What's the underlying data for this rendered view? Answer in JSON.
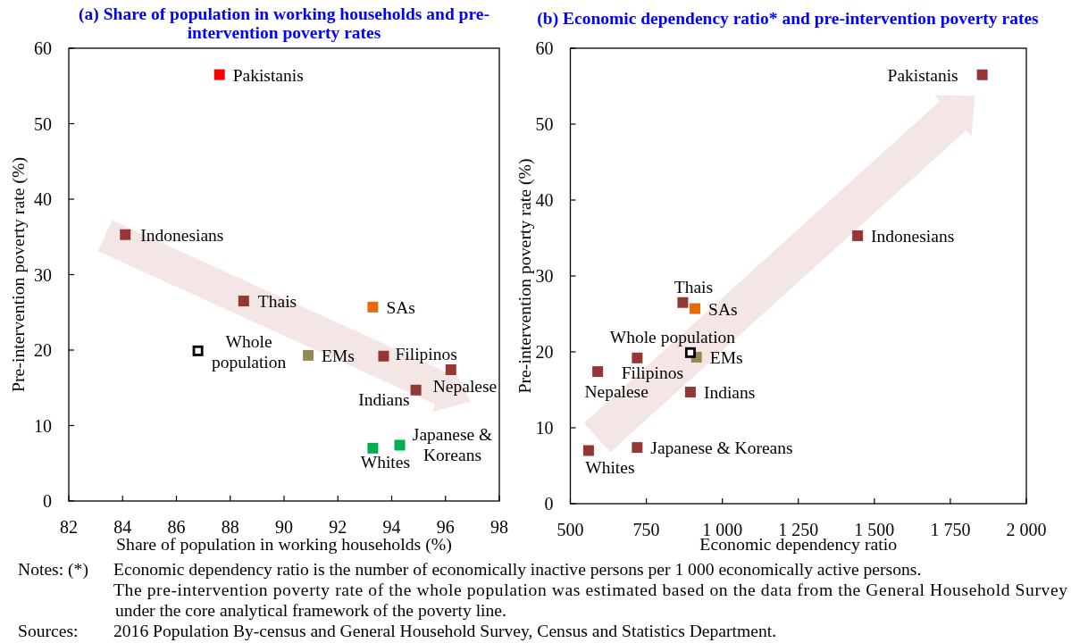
{
  "chart_data": [
    {
      "type": "scatter",
      "title": "(a) Share of population in working households and pre-intervention poverty rates",
      "xlabel": "Share of population in working households (%)",
      "ylabel": "Pre-intervention poverty rate (%)",
      "marker": "square",
      "xlim": [
        82,
        98
      ],
      "xticks": [
        82,
        84,
        86,
        88,
        90,
        92,
        94,
        96,
        98
      ],
      "ylim": [
        0,
        60
      ],
      "yticks": [
        0,
        10,
        20,
        30,
        40,
        50,
        60
      ],
      "series": [
        {
          "name": "Pakistanis",
          "color": "#ff0000",
          "x": [
            87.6
          ],
          "values": [
            56.5
          ]
        },
        {
          "name": "Indonesians",
          "color": "#953735",
          "x": [
            84.1
          ],
          "values": [
            35.3
          ]
        },
        {
          "name": "Thais",
          "color": "#953735",
          "x": [
            88.5
          ],
          "values": [
            26.5
          ]
        },
        {
          "name": "SAs",
          "color": "#e46c0a",
          "x": [
            93.3
          ],
          "values": [
            25.7
          ]
        },
        {
          "name": "EMs",
          "color": "#948a54",
          "x": [
            90.9
          ],
          "values": [
            19.3
          ]
        },
        {
          "name": "Filipinos",
          "color": "#953735",
          "x": [
            93.7
          ],
          "values": [
            19.2
          ]
        },
        {
          "name": "Nepalese",
          "color": "#953735",
          "x": [
            96.2
          ],
          "values": [
            17.4
          ]
        },
        {
          "name": "Indians",
          "color": "#953735",
          "x": [
            94.9
          ],
          "values": [
            14.7
          ]
        },
        {
          "name": "Whites",
          "color": "#00b050",
          "x": [
            93.3
          ],
          "values": [
            7.0
          ]
        },
        {
          "name": "Japanese & Koreans",
          "color": "#00b050",
          "x": [
            94.3
          ],
          "values": [
            7.4
          ]
        },
        {
          "name": "Whole population",
          "color": "#000000",
          "marker": "square-open",
          "x": [
            86.8
          ],
          "values": [
            19.9
          ]
        }
      ]
    },
    {
      "type": "scatter",
      "title": "(b) Economic dependency ratio* and pre-intervention poverty rates",
      "xlabel": "Economic dependency ratio",
      "ylabel": "Pre-intervention poverty rate (%)",
      "marker": "square",
      "xlim": [
        500,
        2000
      ],
      "xticks": [
        500,
        750,
        {
          "value": 1000,
          "label": "1 000"
        },
        {
          "value": 1250,
          "label": "1 250"
        },
        {
          "value": 1500,
          "label": "1 500"
        },
        {
          "value": 1750,
          "label": "1 750"
        },
        {
          "value": 2000,
          "label": "2 000"
        }
      ],
      "ylim": [
        0,
        60
      ],
      "yticks": [
        0,
        10,
        20,
        30,
        40,
        50,
        60
      ],
      "series": [
        {
          "name": "Pakistanis",
          "color": "#953735",
          "x": [
            1855
          ],
          "values": [
            56.5
          ]
        },
        {
          "name": "Indonesians",
          "color": "#953735",
          "x": [
            1445
          ],
          "values": [
            35.3
          ]
        },
        {
          "name": "Thais",
          "color": "#953735",
          "x": [
            870
          ],
          "values": [
            26.5
          ]
        },
        {
          "name": "SAs",
          "color": "#e46c0a",
          "x": [
            910
          ],
          "values": [
            25.7
          ]
        },
        {
          "name": "EMs",
          "color": "#948a54",
          "x": [
            915
          ],
          "values": [
            19.3
          ]
        },
        {
          "name": "Filipinos",
          "color": "#953735",
          "x": [
            720
          ],
          "values": [
            19.2
          ]
        },
        {
          "name": "Nepalese",
          "color": "#953735",
          "x": [
            590
          ],
          "values": [
            17.4
          ]
        },
        {
          "name": "Indians",
          "color": "#953735",
          "x": [
            895
          ],
          "values": [
            14.7
          ]
        },
        {
          "name": "Whites",
          "color": "#953735",
          "x": [
            560
          ],
          "values": [
            7.0
          ]
        },
        {
          "name": "Japanese & Koreans",
          "color": "#953735",
          "x": [
            720
          ],
          "values": [
            7.4
          ]
        },
        {
          "name": "Whole population",
          "color": "#000000",
          "marker": "square-open",
          "x": [
            895
          ],
          "values": [
            19.9
          ]
        }
      ],
      "annotations": [
        "Notes: (*)",
        "Economic dependency ratio is the number of economically inactive persons per 1 000 economically active persons.",
        "The pre-intervention poverty rate of the whole population was estimated based on the data from the General Household Survey under the core analytical framework of the poverty line.",
        "Sources:",
        "2016 Population By-census and General Household Survey, Census and Statistics Department."
      ]
    }
  ]
}
